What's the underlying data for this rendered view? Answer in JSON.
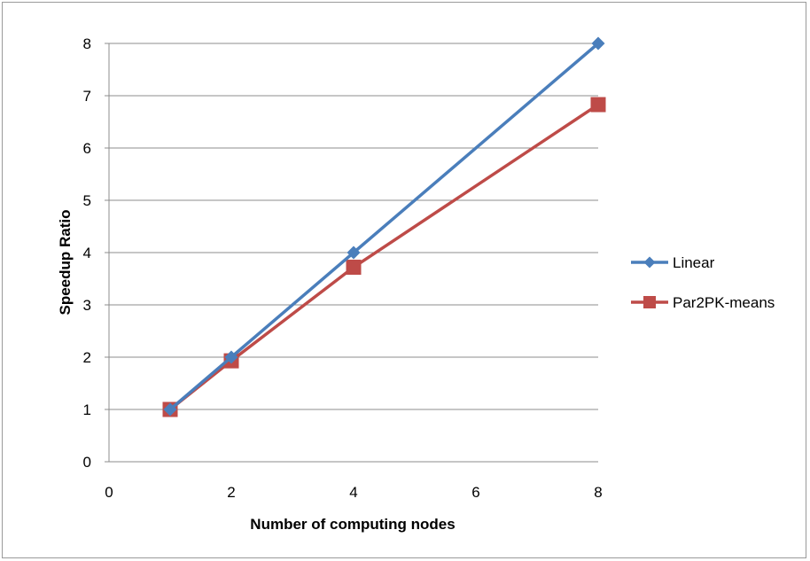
{
  "chart_data": {
    "type": "scatter",
    "title": "",
    "xlabel": "Number of computing nodes",
    "ylabel": "Speedup Ratio",
    "xlim": [
      0,
      8
    ],
    "ylim": [
      0,
      8
    ],
    "x_ticks": [
      "0",
      "2",
      "4",
      "6",
      "8"
    ],
    "y_ticks": [
      "0",
      "1",
      "2",
      "3",
      "4",
      "5",
      "6",
      "7",
      "8"
    ],
    "grid": "horizontal",
    "legend_position": "right",
    "series": [
      {
        "name": "Linear",
        "color": "#4a7ebb",
        "marker": "diamond",
        "x": [
          1,
          2,
          4,
          8
        ],
        "y": [
          1,
          2,
          4,
          8
        ]
      },
      {
        "name": "Par2PK-means",
        "color": "#be4b48",
        "marker": "square",
        "x": [
          1,
          2,
          4,
          8
        ],
        "y": [
          1,
          1.93,
          3.72,
          6.83
        ]
      }
    ]
  }
}
